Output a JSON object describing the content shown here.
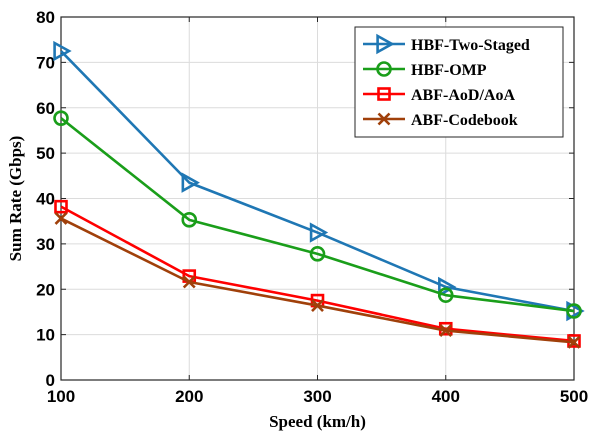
{
  "chart_data": {
    "type": "line",
    "title": "",
    "xlabel": "Speed (km/h)",
    "ylabel": "Sum Rate (Gbps)",
    "x": [
      100,
      200,
      300,
      400,
      500
    ],
    "xlim": [
      100,
      500
    ],
    "ylim": [
      0,
      80
    ],
    "xticks": [
      "100",
      "200",
      "300",
      "400",
      "500"
    ],
    "yticks": [
      "0",
      "10",
      "20",
      "30",
      "40",
      "50",
      "60",
      "70",
      "80"
    ],
    "grid": true,
    "legend_position": "top-right",
    "series": [
      {
        "name": "HBF-Two-Staged",
        "values": [
          72.5,
          43.5,
          32.5,
          20.5,
          15.2
        ],
        "color": "#1f77b4",
        "marker": "triangle-right"
      },
      {
        "name": "HBF-OMP",
        "values": [
          57.7,
          35.3,
          27.8,
          18.7,
          15.2
        ],
        "color": "#1a9e1a",
        "marker": "circle"
      },
      {
        "name": "ABF-AoD/AoA",
        "values": [
          38.2,
          22.9,
          17.5,
          11.3,
          8.6
        ],
        "color": "#ff0000",
        "marker": "square"
      },
      {
        "name": "ABF-Codebook",
        "values": [
          35.6,
          21.6,
          16.4,
          10.9,
          8.3
        ],
        "color": "#a0400a",
        "marker": "x"
      }
    ]
  }
}
